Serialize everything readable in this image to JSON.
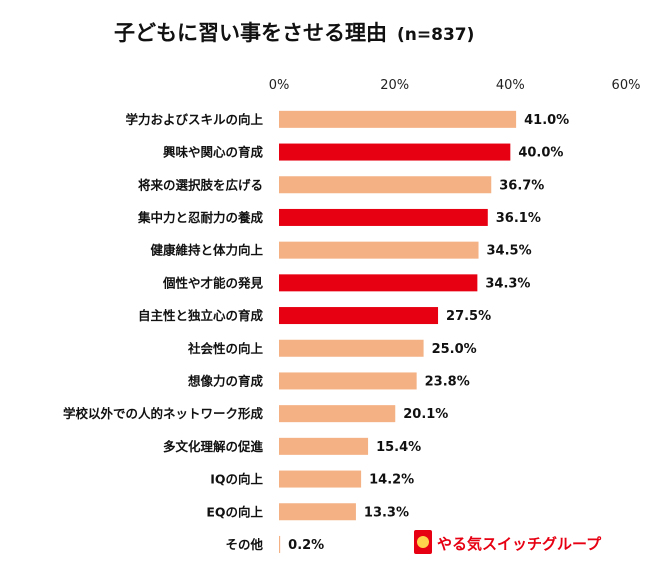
{
  "chart_data": {
    "type": "bar",
    "orientation": "horizontal",
    "title": "子どもに習い事をさせる理由",
    "sample_size": "(n=837)",
    "x_ticks": [
      "0%",
      "20%",
      "40%",
      "60%"
    ],
    "xlim": [
      0,
      60
    ],
    "grid": false,
    "categories": [
      "学力およびスキルの向上",
      "興味や関心の育成",
      "将来の選択肢を広げる",
      "集中力と忍耐力の養成",
      "健康維持と体力向上",
      "個性や才能の発見",
      "自主性と独立心の育成",
      "社会性の向上",
      "想像力の育成",
      "学校以外での人的ネットワーク形成",
      "多文化理解の促進",
      "IQの向上",
      "EQの向上",
      "その他"
    ],
    "values": [
      41.0,
      40.0,
      36.7,
      36.1,
      34.5,
      34.3,
      27.5,
      25.0,
      23.8,
      20.1,
      15.4,
      14.2,
      13.3,
      0.2
    ],
    "value_labels": [
      "41.0%",
      "40.0%",
      "36.7%",
      "36.1%",
      "34.5%",
      "34.3%",
      "27.5%",
      "25.0%",
      "23.8%",
      "20.1%",
      "15.4%",
      "14.2%",
      "13.3%",
      "0.2%"
    ],
    "highlighted": [
      false,
      true,
      false,
      true,
      false,
      true,
      true,
      false,
      false,
      false,
      false,
      false,
      false,
      false
    ],
    "colors": {
      "default": "#f4b183",
      "highlight": "#e60012"
    }
  },
  "logo": {
    "text": "やる気スイッチグループ",
    "color": "#e60012"
  }
}
